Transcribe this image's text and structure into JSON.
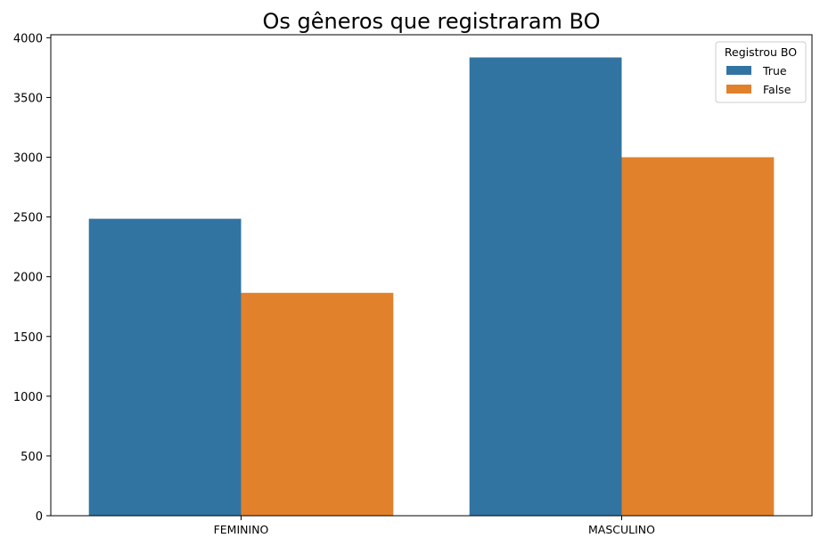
{
  "chart_data": {
    "type": "bar",
    "title": "Os gêneros que registraram BO",
    "xlabel": "",
    "ylabel": "",
    "categories": [
      "FEMININO",
      "MASCULINO"
    ],
    "series": [
      {
        "name": "True",
        "values": [
          2485,
          3835
        ],
        "color": "#3274a1"
      },
      {
        "name": "False",
        "values": [
          1865,
          3000
        ],
        "color": "#e1812c"
      }
    ],
    "ylim": [
      0,
      4025
    ],
    "yticks": [
      0,
      500,
      1000,
      1500,
      2000,
      2500,
      3000,
      3500,
      4000
    ],
    "grid": false,
    "legend": {
      "title": "Registrou BO",
      "placement": "top-right"
    }
  }
}
